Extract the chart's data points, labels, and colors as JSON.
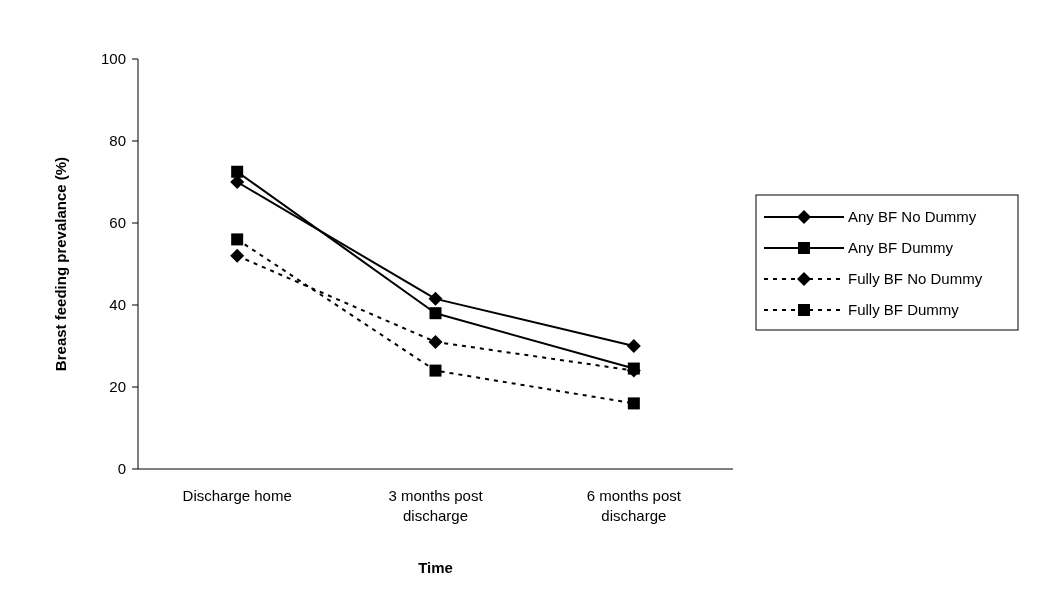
{
  "chart_data": {
    "type": "line",
    "xlabel": "Time",
    "ylabel": "Breast feeding prevalance (%)",
    "categories": [
      "Discharge home",
      "3 months post discharge",
      "6 months post discharge"
    ],
    "ylim": [
      0,
      100
    ],
    "yticks": [
      0,
      20,
      40,
      60,
      80,
      100
    ],
    "legend": "right",
    "grid": false,
    "series": [
      {
        "name": "Any BF No Dummy",
        "color": "#000000",
        "values": [
          70,
          41.5,
          30
        ],
        "marker": "diamond",
        "line_style": "solid"
      },
      {
        "name": "Any BF Dummy",
        "color": "#000000",
        "values": [
          72.5,
          38,
          24.5
        ],
        "marker": "square",
        "line_style": "solid"
      },
      {
        "name": "Fully BF No Dummy",
        "color": "#000000",
        "values": [
          52,
          31,
          24
        ],
        "marker": "diamond",
        "line_style": "dashed"
      },
      {
        "name": "Fully BF Dummy",
        "color": "#000000",
        "values": [
          56,
          24,
          16
        ],
        "marker": "square",
        "line_style": "dashed"
      }
    ]
  }
}
